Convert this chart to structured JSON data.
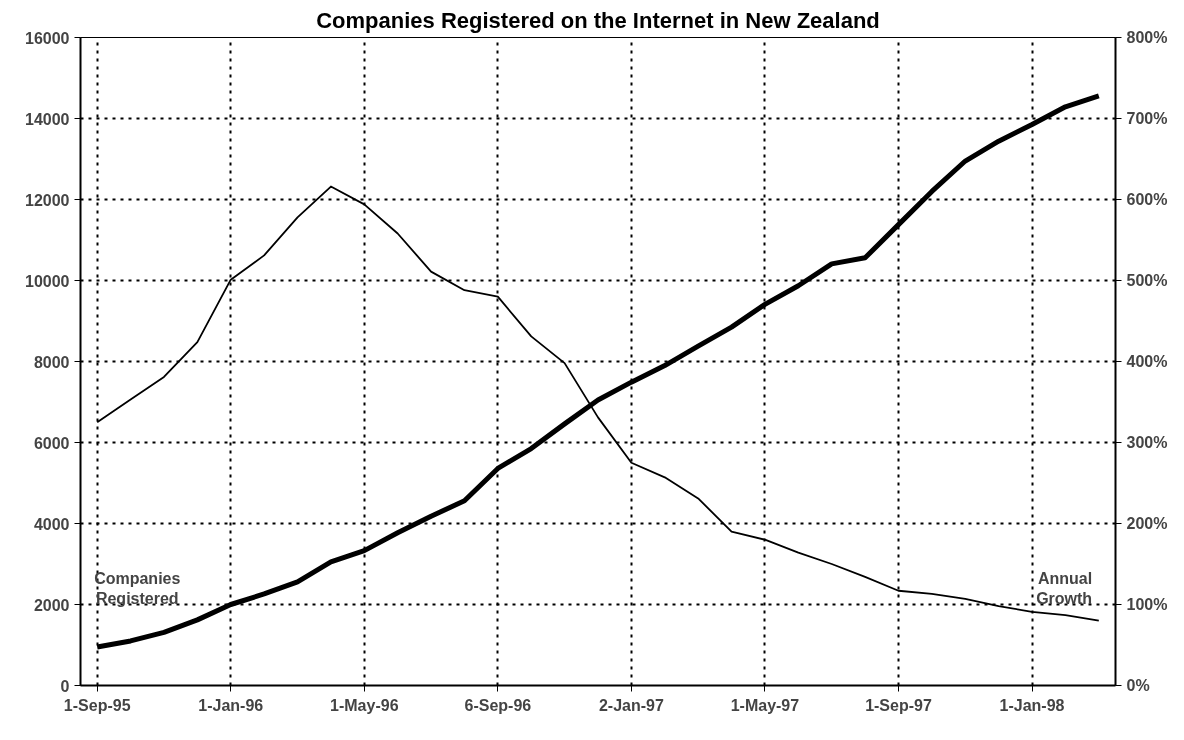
{
  "chart_data": {
    "type": "line",
    "title": "Companies Registered on the Internet in New Zealand",
    "categories": [
      "1-Sep-95",
      null,
      null,
      null,
      "1-Jan-96",
      null,
      null,
      null,
      "1-May-96",
      null,
      null,
      null,
      "6-Sep-96",
      null,
      null,
      null,
      "2-Jan-97",
      null,
      null,
      null,
      "1-May-97",
      null,
      null,
      null,
      "1-Sep-97",
      null,
      null,
      null,
      "1-Jan-98",
      null,
      null
    ],
    "series": [
      {
        "name": "Companies Registered",
        "color": "#000000",
        "values": [
          950,
          1100,
          1310,
          1620,
          2000,
          2260,
          2560,
          3050,
          3330,
          3770,
          4180,
          4560,
          5360,
          5850,
          6460,
          7050,
          7490,
          7900,
          8380,
          8850,
          9410,
          9870,
          10410,
          10560,
          11380,
          12200,
          12950,
          13440,
          13850,
          14290,
          14560
        ]
      },
      {
        "name": "Annual Growth",
        "color": "#000000",
        "axis": "y2",
        "values": [
          325,
          353,
          381,
          424,
          501,
          531,
          578,
          616,
          594,
          558,
          511,
          488,
          480,
          431,
          398,
          331,
          275,
          257,
          231,
          190,
          180,
          164,
          150,
          134,
          117,
          113,
          107,
          98,
          91,
          87,
          80
        ]
      }
    ],
    "ylim": [
      0,
      16000
    ],
    "yticks": [
      0,
      2000,
      4000,
      6000,
      8000,
      10000,
      12000,
      14000,
      16000
    ],
    "y2lim": [
      0,
      800
    ],
    "y2ticks": [
      {
        "value": 0,
        "label": "0%"
      },
      {
        "value": 100,
        "label": "100%"
      },
      {
        "value": 200,
        "label": "200%"
      },
      {
        "value": 300,
        "label": "300%"
      },
      {
        "value": 400,
        "label": "400%"
      },
      {
        "value": 500,
        "label": "500%"
      },
      {
        "value": 600,
        "label": "600%"
      },
      {
        "value": 700,
        "label": "700%"
      },
      {
        "value": 800,
        "label": "800%"
      }
    ],
    "grid": true,
    "line_style": "solid"
  }
}
